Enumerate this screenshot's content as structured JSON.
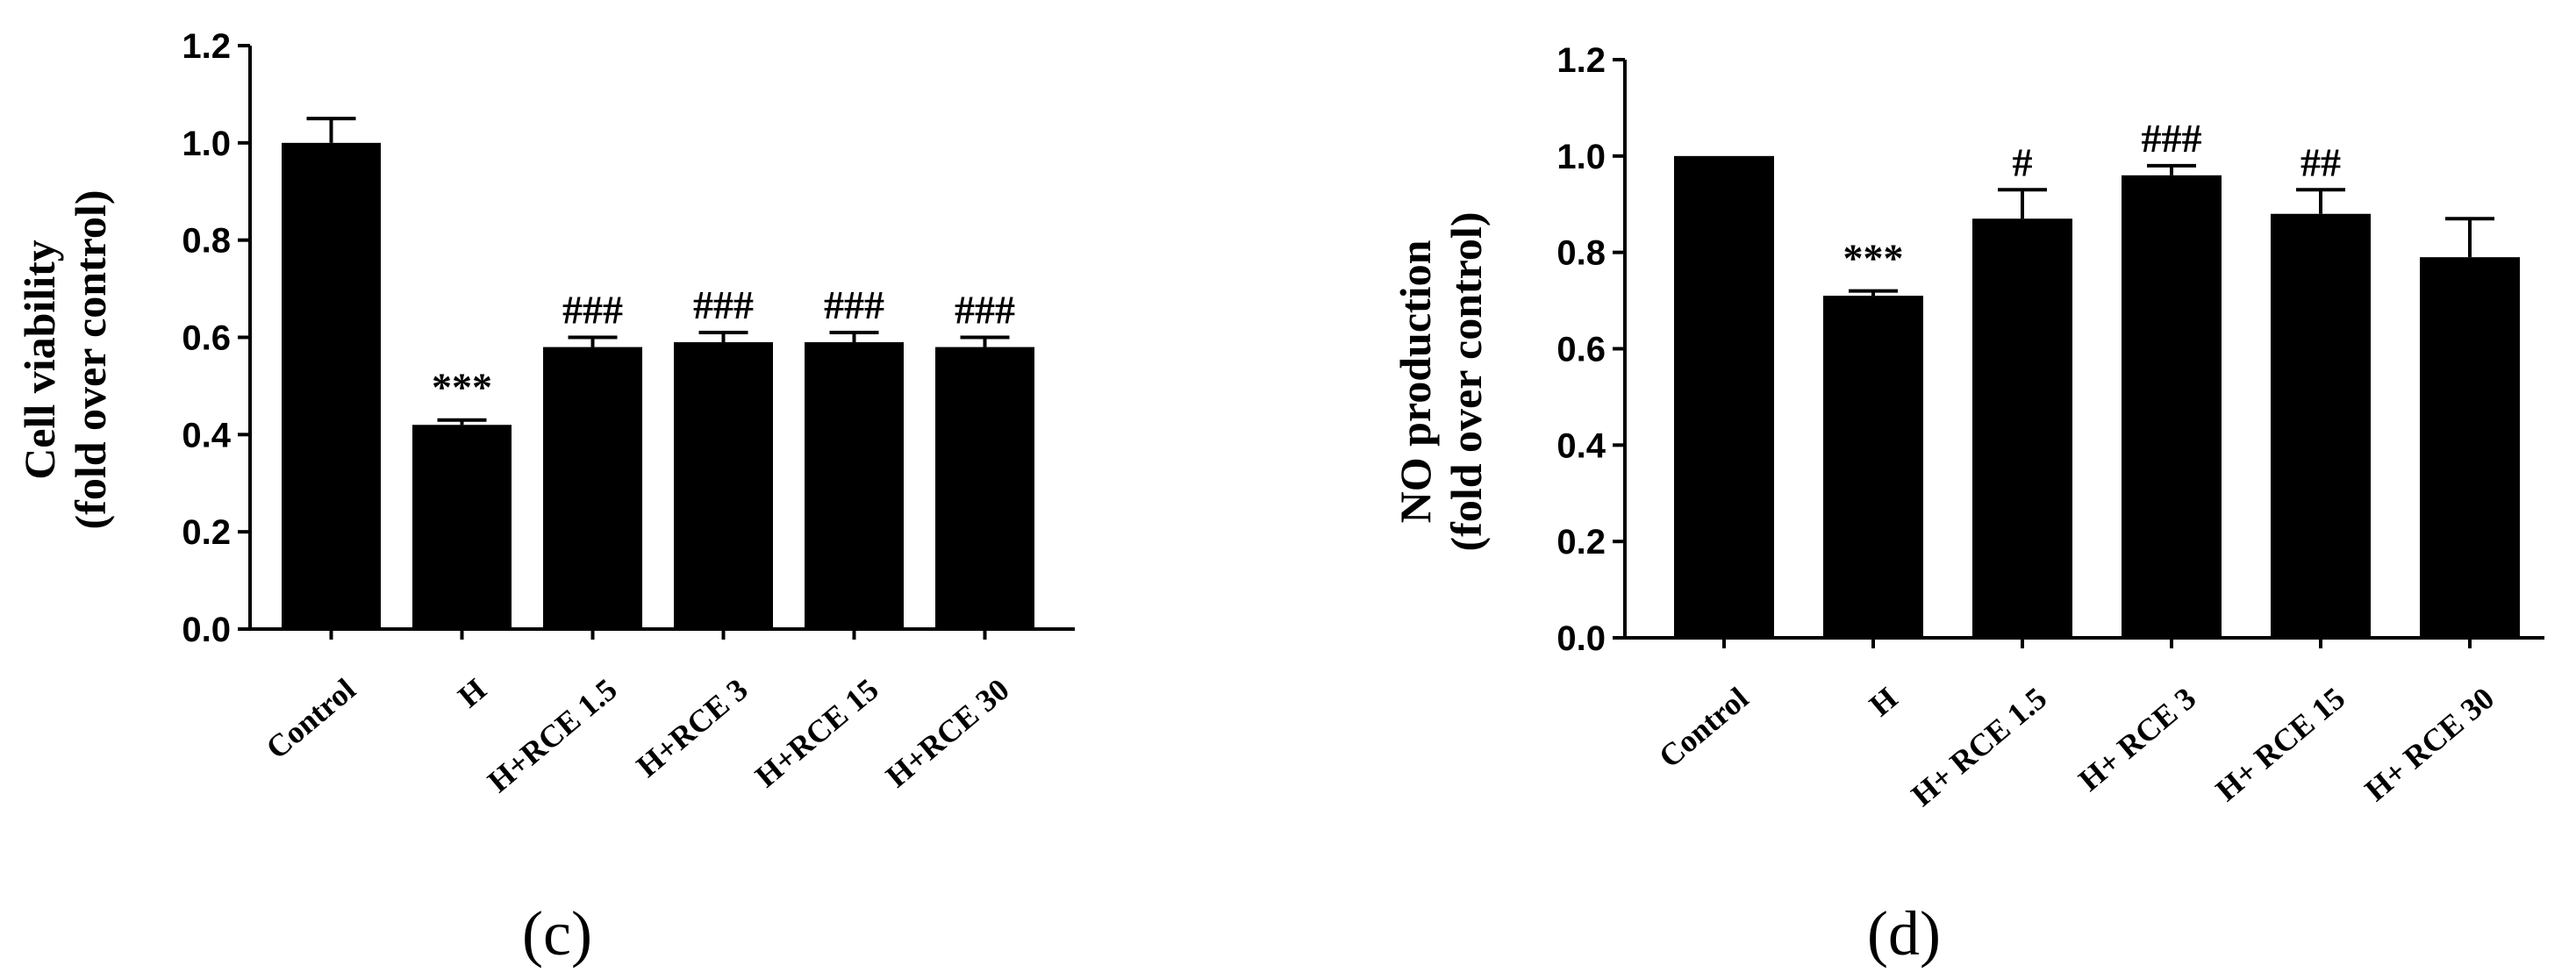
{
  "chart_data": [
    {
      "type": "bar",
      "panel_label": "(c)",
      "ylabel_line1": "Cell viability",
      "ylabel_line2": "(fold over control)",
      "ylim": [
        0,
        1.2
      ],
      "yticks": [
        "0.0",
        "0.2",
        "0.4",
        "0.6",
        "0.8",
        "1.0",
        "1.2"
      ],
      "categories": [
        "Control",
        "H",
        "H+RCE 1.5",
        "H+RCE 3",
        "H+RCE 15",
        "H+RCE 30"
      ],
      "values": [
        1.0,
        0.42,
        0.58,
        0.59,
        0.59,
        0.58
      ],
      "errors": [
        0.05,
        0.01,
        0.02,
        0.02,
        0.02,
        0.02
      ],
      "annotations": [
        "",
        "***",
        "###",
        "###",
        "###",
        "###"
      ],
      "grid": false,
      "color": "#000000"
    },
    {
      "type": "bar",
      "panel_label": "(d)",
      "ylabel_line1": "NO production",
      "ylabel_line2": "(fold over control)",
      "ylim": [
        0,
        1.2
      ],
      "yticks": [
        "0.0",
        "0.2",
        "0.4",
        "0.6",
        "0.8",
        "1.0",
        "1.2"
      ],
      "categories": [
        "Control",
        "H",
        "H+ RCE 1.5",
        "H+ RCE 3",
        "H+ RCE 15",
        "H+ RCE 30"
      ],
      "values": [
        1.0,
        0.71,
        0.87,
        0.96,
        0.88,
        0.79
      ],
      "errors": [
        0.0,
        0.01,
        0.06,
        0.02,
        0.05,
        0.08
      ],
      "annotations": [
        "",
        "***",
        "#",
        "###",
        "##",
        ""
      ],
      "grid": false,
      "color": "#000000"
    }
  ]
}
